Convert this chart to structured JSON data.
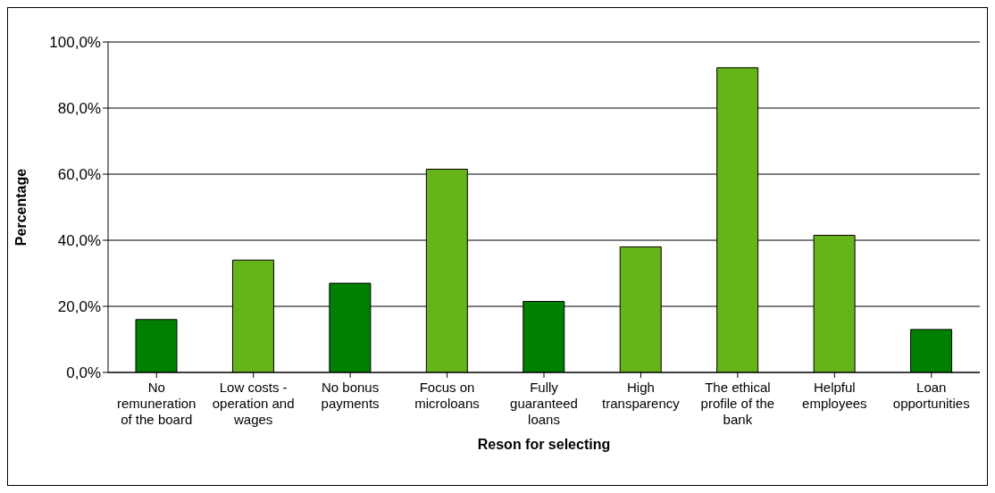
{
  "chart_data": {
    "type": "bar",
    "xlabel": "Reson for selecting",
    "ylabel": "Percentage",
    "categories": [
      "No remuneration of the board",
      "Low costs - operation and wages",
      "No bonus payments",
      "Focus on microloans",
      "Fully guaranteed loans",
      "High transparency",
      "The ethical profile of the bank",
      "Helpful employees",
      "Loan opportunities"
    ],
    "values": [
      16.0,
      34.0,
      27.0,
      61.5,
      21.5,
      38.0,
      92.2,
      41.5,
      13.0
    ],
    "colors": [
      "#007f00",
      "#66b31a",
      "#007f00",
      "#66b31a",
      "#007f00",
      "#66b31a",
      "#66b31a",
      "#66b31a",
      "#007f00"
    ],
    "ylim": [
      0,
      100
    ],
    "yticks": [
      {
        "value": 0,
        "label": "0,0%"
      },
      {
        "value": 20,
        "label": "20,0%"
      },
      {
        "value": 40,
        "label": "40,0%"
      },
      {
        "value": 60,
        "label": "60,0%"
      },
      {
        "value": 80,
        "label": "80,0%"
      },
      {
        "value": 100,
        "label": "100,0%"
      }
    ],
    "grid": "y",
    "legend": false
  }
}
